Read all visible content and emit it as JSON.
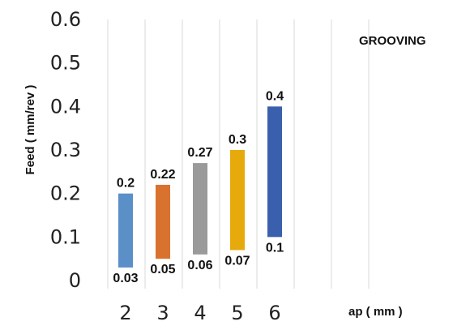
{
  "chart_data": {
    "type": "bar",
    "subtype": "floating-range",
    "title": "GROOVING",
    "xlabel": "ap ( mm )",
    "ylabel": "Feed ( mm/rev )",
    "categories": [
      "2",
      "3",
      "4",
      "5",
      "6"
    ],
    "series": [
      {
        "low": 0.03,
        "high": 0.2,
        "low_label": "0.03",
        "high_label": "0.2",
        "color": "#5b8fc8"
      },
      {
        "low": 0.05,
        "high": 0.22,
        "low_label": "0.05",
        "high_label": "0.22",
        "color": "#d9722e"
      },
      {
        "low": 0.06,
        "high": 0.27,
        "low_label": "0.06",
        "high_label": "0.27",
        "color": "#9a9a9a"
      },
      {
        "low": 0.07,
        "high": 0.3,
        "low_label": "0.07",
        "high_label": "0.3",
        "color": "#e7aa0c"
      },
      {
        "low": 0.1,
        "high": 0.4,
        "low_label": "0.1",
        "high_label": "0.4",
        "color": "#3a60ad"
      }
    ],
    "yticks": [
      "0",
      "0.1",
      "0.2",
      "0.3",
      "0.4",
      "0.5",
      "0.6"
    ],
    "ylim": [
      0,
      0.6
    ],
    "grid": "vertical"
  }
}
